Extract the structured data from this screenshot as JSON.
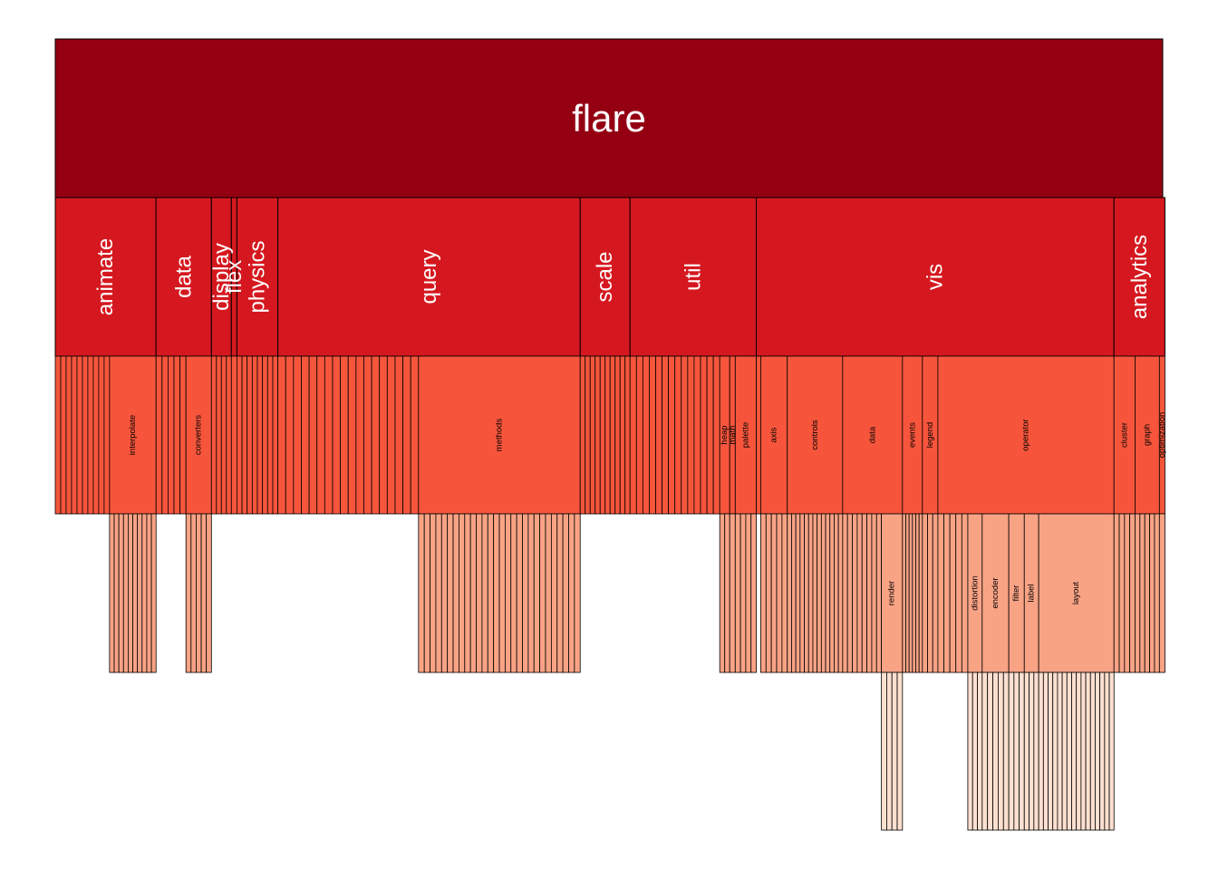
{
  "chart_data": {
    "type": "icicle",
    "colors": {
      "level0": "#940012",
      "level1": "#D5181F",
      "level2": "#F6553C",
      "level3": "#F9A385",
      "level4": "#FDE0D0",
      "border": "#000000",
      "label": "#000000",
      "label_top": "#ffffff"
    },
    "root": {
      "label": "flare",
      "weight": 1000
    },
    "children": [
      {
        "label": "animate",
        "weight": 91,
        "leaves": 10,
        "groups": [
          {
            "label": "interpolate",
            "weight": 42,
            "leaves": 10
          }
        ]
      },
      {
        "label": "data",
        "weight": 50,
        "leaves": 5,
        "groups": [
          {
            "label": "converters",
            "weight": 23,
            "leaves": 5
          }
        ]
      },
      {
        "label": "display",
        "weight": 18,
        "leaves": 4,
        "groups": []
      },
      {
        "label": "flex",
        "weight": 5,
        "leaves": 1,
        "groups": []
      },
      {
        "label": "physics",
        "weight": 37,
        "leaves": 8,
        "groups": []
      },
      {
        "label": "query",
        "weight": 273,
        "leaves": 18,
        "groups": [
          {
            "label": "methods",
            "weight": 146,
            "leaves": 28
          }
        ]
      },
      {
        "label": "scale",
        "weight": 45,
        "leaves": 10,
        "groups": []
      },
      {
        "label": "util",
        "weight": 114,
        "leaves": 14,
        "groups": [
          {
            "label": "heap",
            "weight": 9,
            "leaves": 2
          },
          {
            "label": "math",
            "weight": 5,
            "leaves": 1
          },
          {
            "label": "palette",
            "weight": 19,
            "leaves": 4
          }
        ]
      },
      {
        "label": "vis",
        "weight": 323,
        "leaves": 1,
        "groups": [
          {
            "label": "axis",
            "weight": 24,
            "leaves": 5
          },
          {
            "label": "controls",
            "weight": 50,
            "leaves": 13
          },
          {
            "label": "data",
            "weight": 54,
            "leaves": 8,
            "subgroups": [
              {
                "label": "render",
                "weight": 19,
                "leaves": 4
              }
            ]
          },
          {
            "label": "events",
            "weight": 18,
            "leaves": 6
          },
          {
            "label": "legend",
            "weight": 14,
            "leaves": 3
          },
          {
            "label": "operator",
            "weight": 159,
            "leaves": 5,
            "subgroups": [
              {
                "label": "distortion",
                "weight": 13,
                "leaves": 3
              },
              {
                "label": "encoder",
                "weight": 24,
                "leaves": 5
              },
              {
                "label": "filter",
                "weight": 14,
                "leaves": 3
              },
              {
                "label": "label",
                "weight": 13,
                "leaves": 3
              },
              {
                "label": "layout",
                "weight": 68,
                "leaves": 16
              }
            ]
          }
        ]
      },
      {
        "label": "analytics",
        "weight": 46,
        "leaves": 0,
        "groups": [
          {
            "label": "cluster",
            "weight": 19,
            "leaves": 4
          },
          {
            "label": "graph",
            "weight": 22,
            "leaves": 5
          },
          {
            "label": "optimization",
            "weight": 5,
            "leaves": 1
          }
        ]
      }
    ]
  }
}
